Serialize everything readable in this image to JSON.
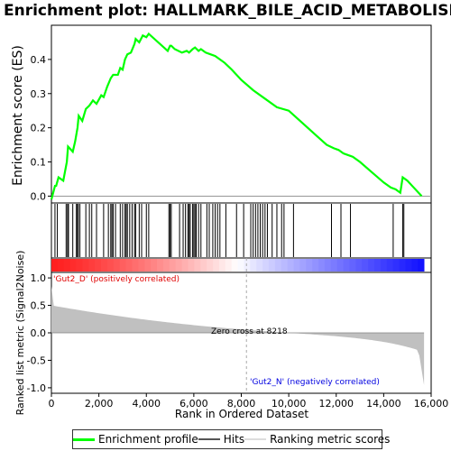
{
  "chart_data": {
    "type": "line",
    "title": "Enrichment plot: HALLMARK_BILE_ACID_METABOLISM",
    "ylabel_top": "Enrichment score (ES)",
    "ylabel_bottom": "Ranked list metric (Signal2Noise)",
    "xlabel": "Rank in Ordered Dataset",
    "x_range": [
      0,
      16000
    ],
    "x_ticks": [
      "0",
      "2,000",
      "4,000",
      "6,000",
      "8,000",
      "10,000",
      "12,000",
      "14,000",
      "16,000"
    ],
    "x_tick_values": [
      0,
      2000,
      4000,
      6000,
      8000,
      10000,
      12000,
      14000,
      16000
    ],
    "es_ylim": [
      -0.02,
      0.5
    ],
    "es_ticks": [
      "0.0",
      "0.1",
      "0.2",
      "0.3",
      "0.4"
    ],
    "es_tick_values": [
      0.0,
      0.1,
      0.2,
      0.3,
      0.4
    ],
    "metric_ylim": [
      -1.1,
      1.1
    ],
    "metric_ticks": [
      "1.0",
      "0.5",
      "0.0",
      "-0.5",
      "-1.0"
    ],
    "metric_tick_values": [
      1.0,
      0.5,
      0.0,
      -0.5,
      -1.0
    ],
    "series": [
      {
        "name": "Enrichment profile",
        "color": "#00ff00",
        "x": [
          0,
          150,
          200,
          300,
          500,
          650,
          700,
          900,
          1000,
          1100,
          1150,
          1300,
          1450,
          1600,
          1750,
          1900,
          2100,
          2200,
          2350,
          2500,
          2600,
          2800,
          2900,
          3000,
          3100,
          3200,
          3350,
          3500,
          3550,
          3700,
          3850,
          4000,
          4100,
          4900,
          5000,
          5050,
          5200,
          5500,
          5700,
          5800,
          5950,
          6050,
          6200,
          6300,
          6500,
          6700,
          6900,
          7100,
          7300,
          7600,
          8000,
          8500,
          9000,
          9500,
          10000,
          10400,
          10800,
          11200,
          11600,
          11900,
          12100,
          12300,
          12500,
          12700,
          13000,
          13500,
          14000,
          14300,
          14500,
          14700,
          14800,
          15000,
          15200,
          15600
        ],
        "y": [
          -0.01,
          0.03,
          0.03,
          0.055,
          0.045,
          0.1,
          0.145,
          0.13,
          0.16,
          0.2,
          0.235,
          0.22,
          0.255,
          0.265,
          0.28,
          0.27,
          0.295,
          0.29,
          0.32,
          0.345,
          0.355,
          0.355,
          0.375,
          0.37,
          0.4,
          0.415,
          0.42,
          0.445,
          0.46,
          0.45,
          0.47,
          0.465,
          0.475,
          0.425,
          0.44,
          0.44,
          0.43,
          0.42,
          0.425,
          0.42,
          0.43,
          0.435,
          0.425,
          0.43,
          0.42,
          0.415,
          0.41,
          0.4,
          0.39,
          0.37,
          0.34,
          0.31,
          0.285,
          0.26,
          0.25,
          0.225,
          0.2,
          0.175,
          0.15,
          0.14,
          0.135,
          0.125,
          0.12,
          0.115,
          0.1,
          0.07,
          0.04,
          0.025,
          0.02,
          0.01,
          0.055,
          0.045,
          0.03,
          0.0
        ]
      },
      {
        "name": "Hits",
        "color": "#000000",
        "positions": [
          150,
          250,
          620,
          680,
          720,
          900,
          1050,
          1100,
          1130,
          1200,
          1450,
          1600,
          1700,
          1900,
          2200,
          2400,
          2500,
          2550,
          2600,
          2700,
          2900,
          3000,
          3100,
          3150,
          3200,
          3300,
          3400,
          3500,
          3550,
          3700,
          3800,
          4000,
          4100,
          4950,
          5000,
          5050,
          5400,
          5550,
          5650,
          5750,
          5800,
          5850,
          5950,
          6000,
          6050,
          6100,
          6200,
          6300,
          6550,
          6650,
          6800,
          6900,
          7000,
          7100,
          7350,
          7800,
          8100,
          8400,
          8500,
          8600,
          8700,
          8800,
          8900,
          9000,
          9100,
          9300,
          9500,
          9700,
          9800,
          10200,
          11800,
          12200,
          12600,
          14400,
          14800,
          14850
        ]
      },
      {
        "name": "Ranking metric scores",
        "color": "#c0c0c0"
      }
    ],
    "zero_cross_label": "Zero cross at 8218",
    "zero_cross_x": 8218,
    "positive_label": "'Gut2_D' (positively correlated)",
    "negative_label": "'Gut2_N' (negatively correlated)",
    "positive_color": "#e00000",
    "negative_color": "#0000e0",
    "dataset_size": 15700
  }
}
